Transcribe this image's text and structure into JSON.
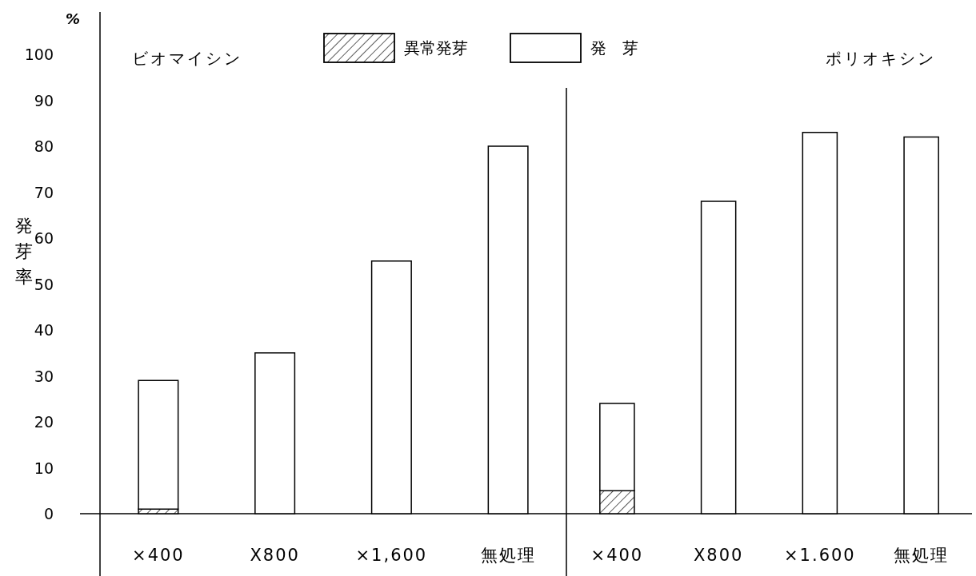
{
  "chart_data": [
    {
      "type": "bar",
      "title": "ビオマイシン",
      "ylabel": "発芽率",
      "annotations": [
        "%"
      ],
      "categories": [
        "×400",
        "X800",
        "×1,600",
        "無処理"
      ],
      "stacked": true,
      "legend": "top",
      "ylim": [
        0,
        100
      ],
      "yticks": [
        0,
        10,
        20,
        30,
        40,
        50,
        60,
        70,
        80,
        90,
        100
      ],
      "series": [
        {
          "name": "異常発芽",
          "color": "#000000",
          "values": [
            1,
            0,
            0,
            0
          ]
        },
        {
          "name": "発　芽",
          "color": "#ffffff",
          "values": [
            28,
            35,
            55,
            80
          ]
        }
      ]
    },
    {
      "type": "bar",
      "title": "ポリオキシン",
      "categories": [
        "×400",
        "X800",
        "×1.600",
        "無処理"
      ],
      "stacked": true,
      "ylim": [
        0,
        100
      ],
      "tick_labels": "x",
      "series": [
        {
          "color": "#000000",
          "values": [
            5,
            0,
            0,
            0
          ]
        },
        {
          "color": "#ffffff",
          "values": [
            19,
            68,
            83,
            82
          ]
        }
      ]
    }
  ]
}
